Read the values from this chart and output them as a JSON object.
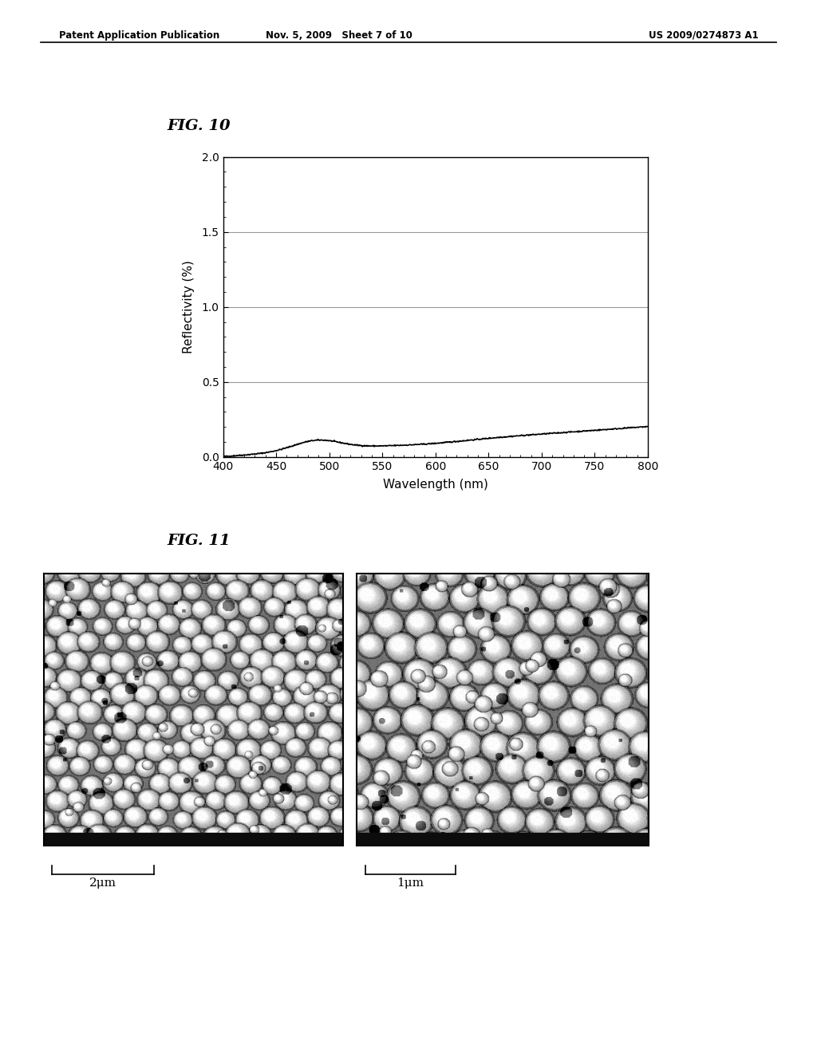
{
  "header_left": "Patent Application Publication",
  "header_mid": "Nov. 5, 2009   Sheet 7 of 10",
  "header_right": "US 2009/0274873 A1",
  "fig10_label": "FIG. 10",
  "fig11_label": "FIG. 11",
  "xlabel": "Wavelength (nm)",
  "ylabel": "Reflectivity (%)",
  "xlim": [
    400,
    800
  ],
  "ylim": [
    0.0,
    2.0
  ],
  "xticks": [
    400,
    450,
    500,
    550,
    600,
    650,
    700,
    750,
    800
  ],
  "yticks": [
    0.0,
    0.5,
    1.0,
    1.5,
    2.0
  ],
  "ytick_labels": [
    "0.0",
    "0.5",
    "1.0",
    "1.5",
    "2.0"
  ],
  "grid_yticks": [
    0.5,
    1.0,
    1.5,
    2.0
  ],
  "line_color": "#000000",
  "grid_color": "#999999",
  "background_color": "#ffffff",
  "scale_label_left": "2μm",
  "scale_label_right": "1μm"
}
